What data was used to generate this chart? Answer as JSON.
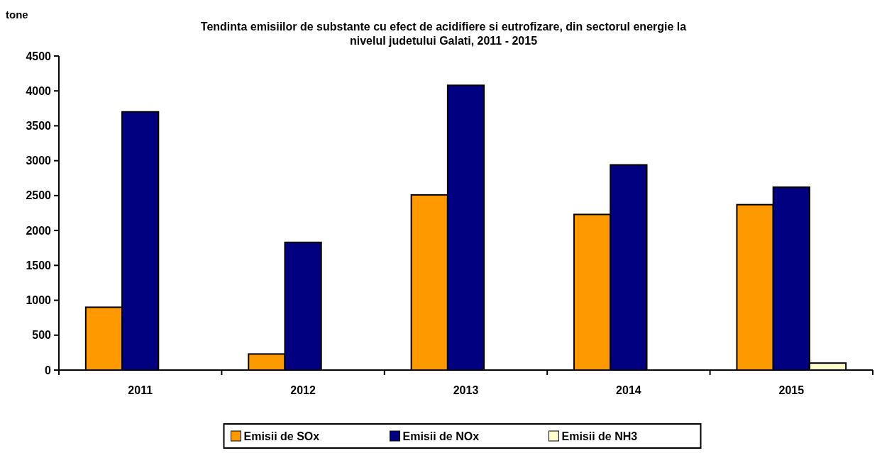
{
  "chart_data": {
    "type": "bar",
    "title": "Tendinta emisiilor de substante cu efect de acidifiere si eutrofizare, din sectorul energie la nivelul judetului Galati, 2011 - 2015",
    "ylabel": "tone",
    "categories": [
      "2011",
      "2012",
      "2013",
      "2014",
      "2015"
    ],
    "series": [
      {
        "name": "Emisii de SOx",
        "color": "#ff9900",
        "values": [
          900,
          230,
          2510,
          2230,
          2370
        ]
      },
      {
        "name": "Emisii de NOx",
        "color": "#000080",
        "values": [
          3700,
          1830,
          4080,
          2940,
          2620
        ]
      },
      {
        "name": "Emisii de NH3",
        "color": "#ffffcc",
        "values": [
          null,
          null,
          null,
          null,
          100
        ]
      }
    ],
    "ylim": [
      0,
      4500
    ],
    "yticks": [
      0,
      500,
      1000,
      1500,
      2000,
      2500,
      3000,
      3500,
      4000,
      4500
    ],
    "grid": false,
    "legend": "bottom"
  }
}
